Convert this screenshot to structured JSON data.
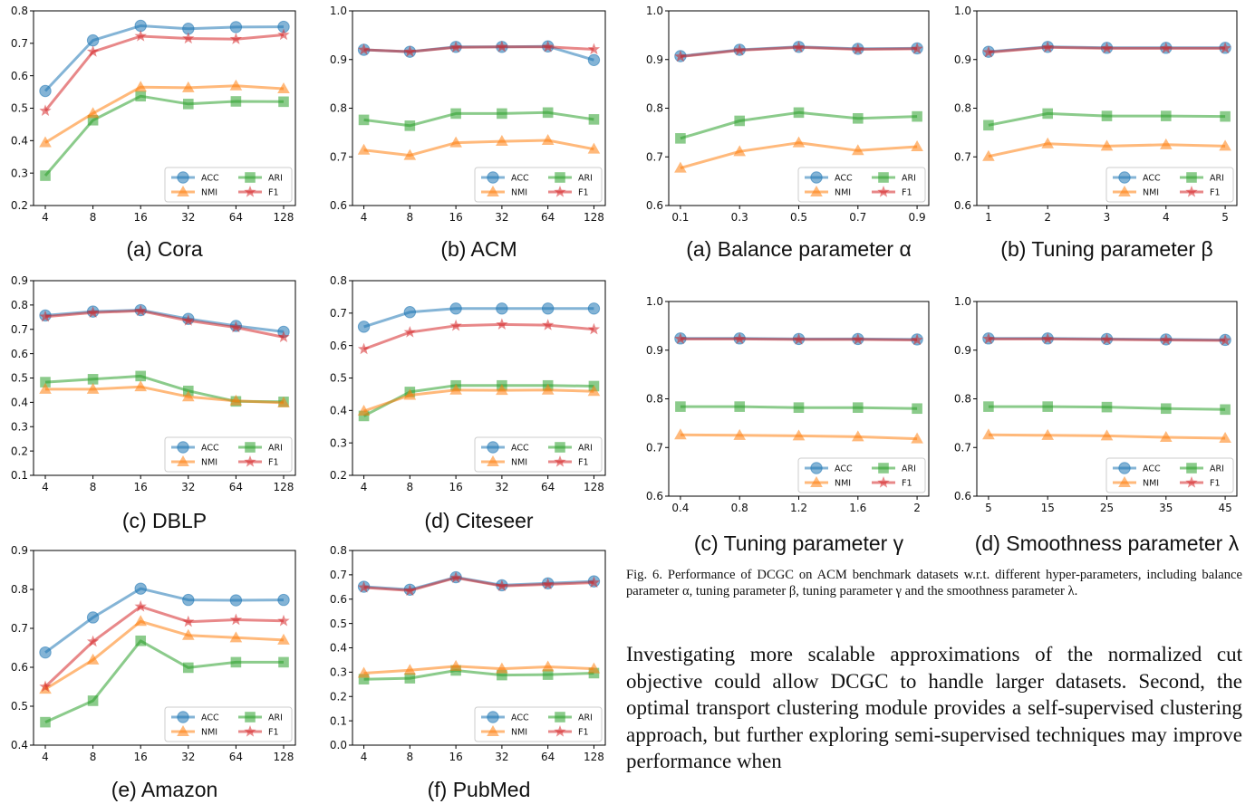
{
  "legend": {
    "acc": "ACC",
    "ari": "ARI",
    "nmi": "NMI",
    "f1": "F1"
  },
  "colors": {
    "acc": "#1f77b4",
    "ari": "#2ca02c",
    "nmi": "#ff7f0e",
    "f1": "#d62728"
  },
  "chart_data": [
    {
      "id": "cora",
      "type": "line",
      "caption": "(a) Cora",
      "x": [
        "4",
        "8",
        "16",
        "32",
        "64",
        "128"
      ],
      "ylim": [
        0.2,
        0.8
      ],
      "yticks": [
        "0.2",
        "0.3",
        "0.4",
        "0.5",
        "0.6",
        "0.7",
        "0.8"
      ],
      "series": [
        {
          "name": "ACC",
          "values": [
            0.553,
            0.709,
            0.754,
            0.745,
            0.75,
            0.751
          ]
        },
        {
          "name": "NMI",
          "values": [
            0.394,
            0.484,
            0.565,
            0.563,
            0.569,
            0.56
          ]
        },
        {
          "name": "ARI",
          "values": [
            0.292,
            0.463,
            0.537,
            0.513,
            0.521,
            0.52
          ]
        },
        {
          "name": "F1",
          "values": [
            0.492,
            0.674,
            0.722,
            0.715,
            0.713,
            0.726
          ]
        }
      ]
    },
    {
      "id": "acm",
      "type": "line",
      "caption": "(b) ACM",
      "x": [
        "4",
        "8",
        "16",
        "32",
        "64",
        "128"
      ],
      "ylim": [
        0.6,
        1.0
      ],
      "yticks": [
        "0.6",
        "0.7",
        "0.8",
        "0.9",
        "1.0"
      ],
      "series": [
        {
          "name": "ACC",
          "values": [
            0.92,
            0.916,
            0.926,
            0.926,
            0.927,
            0.899
          ]
        },
        {
          "name": "NMI",
          "values": [
            0.714,
            0.703,
            0.729,
            0.732,
            0.734,
            0.716
          ]
        },
        {
          "name": "ARI",
          "values": [
            0.776,
            0.764,
            0.789,
            0.789,
            0.791,
            0.777
          ]
        },
        {
          "name": "F1",
          "values": [
            0.92,
            0.916,
            0.925,
            0.926,
            0.926,
            0.921
          ]
        }
      ]
    },
    {
      "id": "dblp",
      "type": "line",
      "caption": "(c) DBLP",
      "x": [
        "4",
        "8",
        "16",
        "32",
        "64",
        "128"
      ],
      "ylim": [
        0.1,
        0.9
      ],
      "yticks": [
        "0.1",
        "0.2",
        "0.3",
        "0.4",
        "0.5",
        "0.6",
        "0.7",
        "0.8",
        "0.9"
      ],
      "series": [
        {
          "name": "ACC",
          "values": [
            0.757,
            0.773,
            0.779,
            0.743,
            0.714,
            0.69
          ]
        },
        {
          "name": "NMI",
          "values": [
            0.454,
            0.454,
            0.464,
            0.423,
            0.406,
            0.398
          ]
        },
        {
          "name": "ARI",
          "values": [
            0.483,
            0.495,
            0.508,
            0.447,
            0.404,
            0.402
          ]
        },
        {
          "name": "F1",
          "values": [
            0.752,
            0.769,
            0.776,
            0.736,
            0.708,
            0.668
          ]
        }
      ]
    },
    {
      "id": "citeseer",
      "type": "line",
      "caption": "(d) Citeseer",
      "x": [
        "4",
        "8",
        "16",
        "32",
        "64",
        "128"
      ],
      "ylim": [
        0.2,
        0.8
      ],
      "yticks": [
        "0.2",
        "0.3",
        "0.4",
        "0.5",
        "0.6",
        "0.7",
        "0.8"
      ],
      "series": [
        {
          "name": "ACC",
          "values": [
            0.658,
            0.703,
            0.714,
            0.714,
            0.714,
            0.714
          ]
        },
        {
          "name": "NMI",
          "values": [
            0.398,
            0.447,
            0.463,
            0.462,
            0.463,
            0.459
          ]
        },
        {
          "name": "ARI",
          "values": [
            0.383,
            0.457,
            0.477,
            0.477,
            0.477,
            0.475
          ]
        },
        {
          "name": "F1",
          "values": [
            0.589,
            0.641,
            0.661,
            0.665,
            0.663,
            0.65
          ]
        }
      ]
    },
    {
      "id": "amazon",
      "type": "line",
      "caption": "(e) Amazon",
      "x": [
        "4",
        "8",
        "16",
        "32",
        "64",
        "128"
      ],
      "ylim": [
        0.4,
        0.9
      ],
      "yticks": [
        "0.4",
        "0.5",
        "0.6",
        "0.7",
        "0.8",
        "0.9"
      ],
      "series": [
        {
          "name": "ACC",
          "values": [
            0.638,
            0.728,
            0.802,
            0.773,
            0.772,
            0.773
          ]
        },
        {
          "name": "NMI",
          "values": [
            0.544,
            0.619,
            0.718,
            0.682,
            0.676,
            0.67
          ]
        },
        {
          "name": "ARI",
          "values": [
            0.459,
            0.514,
            0.668,
            0.599,
            0.613,
            0.613
          ]
        },
        {
          "name": "F1",
          "values": [
            0.55,
            0.666,
            0.756,
            0.717,
            0.722,
            0.719
          ]
        }
      ]
    },
    {
      "id": "pubmed",
      "type": "line",
      "caption": "(f) PubMed",
      "x": [
        "4",
        "8",
        "16",
        "32",
        "64",
        "128"
      ],
      "ylim": [
        0.0,
        0.8
      ],
      "yticks": [
        "0.0",
        "0.1",
        "0.2",
        "0.3",
        "0.4",
        "0.5",
        "0.6",
        "0.7",
        "0.8"
      ],
      "series": [
        {
          "name": "ACC",
          "values": [
            0.651,
            0.639,
            0.69,
            0.657,
            0.665,
            0.673
          ]
        },
        {
          "name": "NMI",
          "values": [
            0.296,
            0.308,
            0.324,
            0.314,
            0.322,
            0.314
          ]
        },
        {
          "name": "ARI",
          "values": [
            0.271,
            0.275,
            0.307,
            0.288,
            0.29,
            0.296
          ]
        },
        {
          "name": "F1",
          "values": [
            0.648,
            0.635,
            0.688,
            0.654,
            0.661,
            0.668
          ]
        }
      ]
    },
    {
      "id": "alpha",
      "type": "line",
      "caption": "(a) Balance parameter α",
      "x": [
        "0.1",
        "0.3",
        "0.5",
        "0.7",
        "0.9"
      ],
      "ylim": [
        0.6,
        1.0
      ],
      "yticks": [
        "0.6",
        "0.7",
        "0.8",
        "0.9",
        "1.0"
      ],
      "series": [
        {
          "name": "ACC",
          "values": [
            0.907,
            0.92,
            0.926,
            0.922,
            0.923
          ]
        },
        {
          "name": "NMI",
          "values": [
            0.677,
            0.711,
            0.729,
            0.713,
            0.721
          ]
        },
        {
          "name": "ARI",
          "values": [
            0.738,
            0.774,
            0.791,
            0.779,
            0.783
          ]
        },
        {
          "name": "F1",
          "values": [
            0.906,
            0.919,
            0.925,
            0.921,
            0.922
          ]
        }
      ]
    },
    {
      "id": "beta",
      "type": "line",
      "caption": "(b) Tuning parameter β",
      "x": [
        "1",
        "2",
        "3",
        "4",
        "5"
      ],
      "ylim": [
        0.6,
        1.0
      ],
      "yticks": [
        "0.6",
        "0.7",
        "0.8",
        "0.9",
        "1.0"
      ],
      "series": [
        {
          "name": "ACC",
          "values": [
            0.916,
            0.926,
            0.924,
            0.924,
            0.924
          ]
        },
        {
          "name": "NMI",
          "values": [
            0.701,
            0.727,
            0.722,
            0.725,
            0.722
          ]
        },
        {
          "name": "ARI",
          "values": [
            0.765,
            0.789,
            0.784,
            0.784,
            0.783
          ]
        },
        {
          "name": "F1",
          "values": [
            0.915,
            0.925,
            0.923,
            0.923,
            0.923
          ]
        }
      ]
    },
    {
      "id": "gamma",
      "type": "line",
      "caption": "(c) Tuning parameter γ",
      "x": [
        "0.4",
        "0.8",
        "1.2",
        "1.6",
        "2"
      ],
      "ylim": [
        0.6,
        1.0
      ],
      "yticks": [
        "0.6",
        "0.7",
        "0.8",
        "0.9",
        "1.0"
      ],
      "series": [
        {
          "name": "ACC",
          "values": [
            0.924,
            0.924,
            0.923,
            0.923,
            0.922
          ]
        },
        {
          "name": "NMI",
          "values": [
            0.726,
            0.725,
            0.724,
            0.722,
            0.718
          ]
        },
        {
          "name": "ARI",
          "values": [
            0.784,
            0.784,
            0.782,
            0.782,
            0.78
          ]
        },
        {
          "name": "F1",
          "values": [
            0.923,
            0.923,
            0.922,
            0.922,
            0.921
          ]
        }
      ]
    },
    {
      "id": "lambda",
      "type": "line",
      "caption": "(d) Smoothness parameter λ",
      "x": [
        "5",
        "15",
        "25",
        "35",
        "45"
      ],
      "ylim": [
        0.6,
        1.0
      ],
      "yticks": [
        "0.6",
        "0.7",
        "0.8",
        "0.9",
        "1.0"
      ],
      "series": [
        {
          "name": "ACC",
          "values": [
            0.924,
            0.924,
            0.923,
            0.922,
            0.921
          ]
        },
        {
          "name": "NMI",
          "values": [
            0.726,
            0.725,
            0.724,
            0.721,
            0.719
          ]
        },
        {
          "name": "ARI",
          "values": [
            0.784,
            0.784,
            0.783,
            0.78,
            0.778
          ]
        },
        {
          "name": "F1",
          "values": [
            0.923,
            0.923,
            0.922,
            0.921,
            0.92
          ]
        }
      ]
    }
  ],
  "fig_caption": "Fig. 6.  Performance of DCGC on ACM benchmark datasets w.r.t. different hyper-parameters, including balance parameter α, tuning parameter β, tuning parameter γ and the smoothness parameter λ.",
  "body_text": "Investigating more scalable approximations of the normalized cut objective could allow DCGC to handle larger datasets. Second, the optimal transport clustering module provides a self-supervised clustering approach, but further exploring semi-supervised techniques may improve performance when"
}
